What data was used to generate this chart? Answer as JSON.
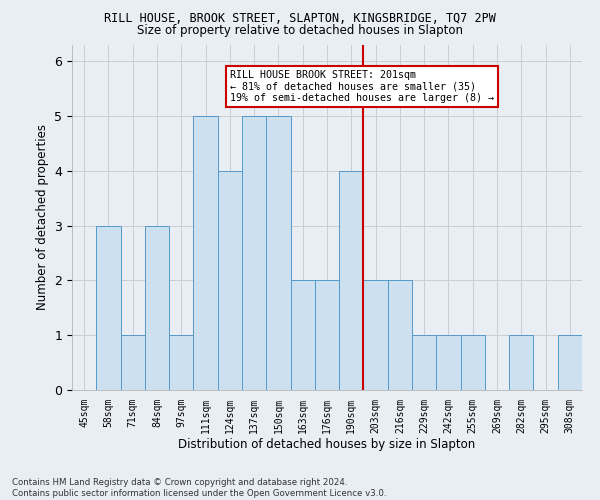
{
  "title": "RILL HOUSE, BROOK STREET, SLAPTON, KINGSBRIDGE, TQ7 2PW",
  "subtitle": "Size of property relative to detached houses in Slapton",
  "xlabel": "Distribution of detached houses by size in Slapton",
  "ylabel": "Number of detached properties",
  "categories": [
    "45sqm",
    "58sqm",
    "71sqm",
    "84sqm",
    "97sqm",
    "111sqm",
    "124sqm",
    "137sqm",
    "150sqm",
    "163sqm",
    "176sqm",
    "190sqm",
    "203sqm",
    "216sqm",
    "229sqm",
    "242sqm",
    "255sqm",
    "269sqm",
    "282sqm",
    "295sqm",
    "308sqm"
  ],
  "values": [
    0,
    3,
    1,
    3,
    1,
    5,
    4,
    5,
    5,
    2,
    2,
    4,
    2,
    2,
    1,
    1,
    1,
    0,
    1,
    0,
    1
  ],
  "bar_color": "#cce0f0",
  "bar_edge_color": "#5599cc",
  "grid_color": "#cccccc",
  "vline_x_index": 12,
  "vline_color": "#cc0000",
  "annotation_text": "RILL HOUSE BROOK STREET: 201sqm\n← 81% of detached houses are smaller (35)\n19% of semi-detached houses are larger (8) →",
  "annotation_box_color": "#cc0000",
  "footer": "Contains HM Land Registry data © Crown copyright and database right 2024.\nContains public sector information licensed under the Open Government Licence v3.0.",
  "ylim": [
    0,
    6.0
  ],
  "yticks": [
    0,
    1,
    2,
    3,
    4,
    5,
    6
  ],
  "background_color": "#e8eef4"
}
